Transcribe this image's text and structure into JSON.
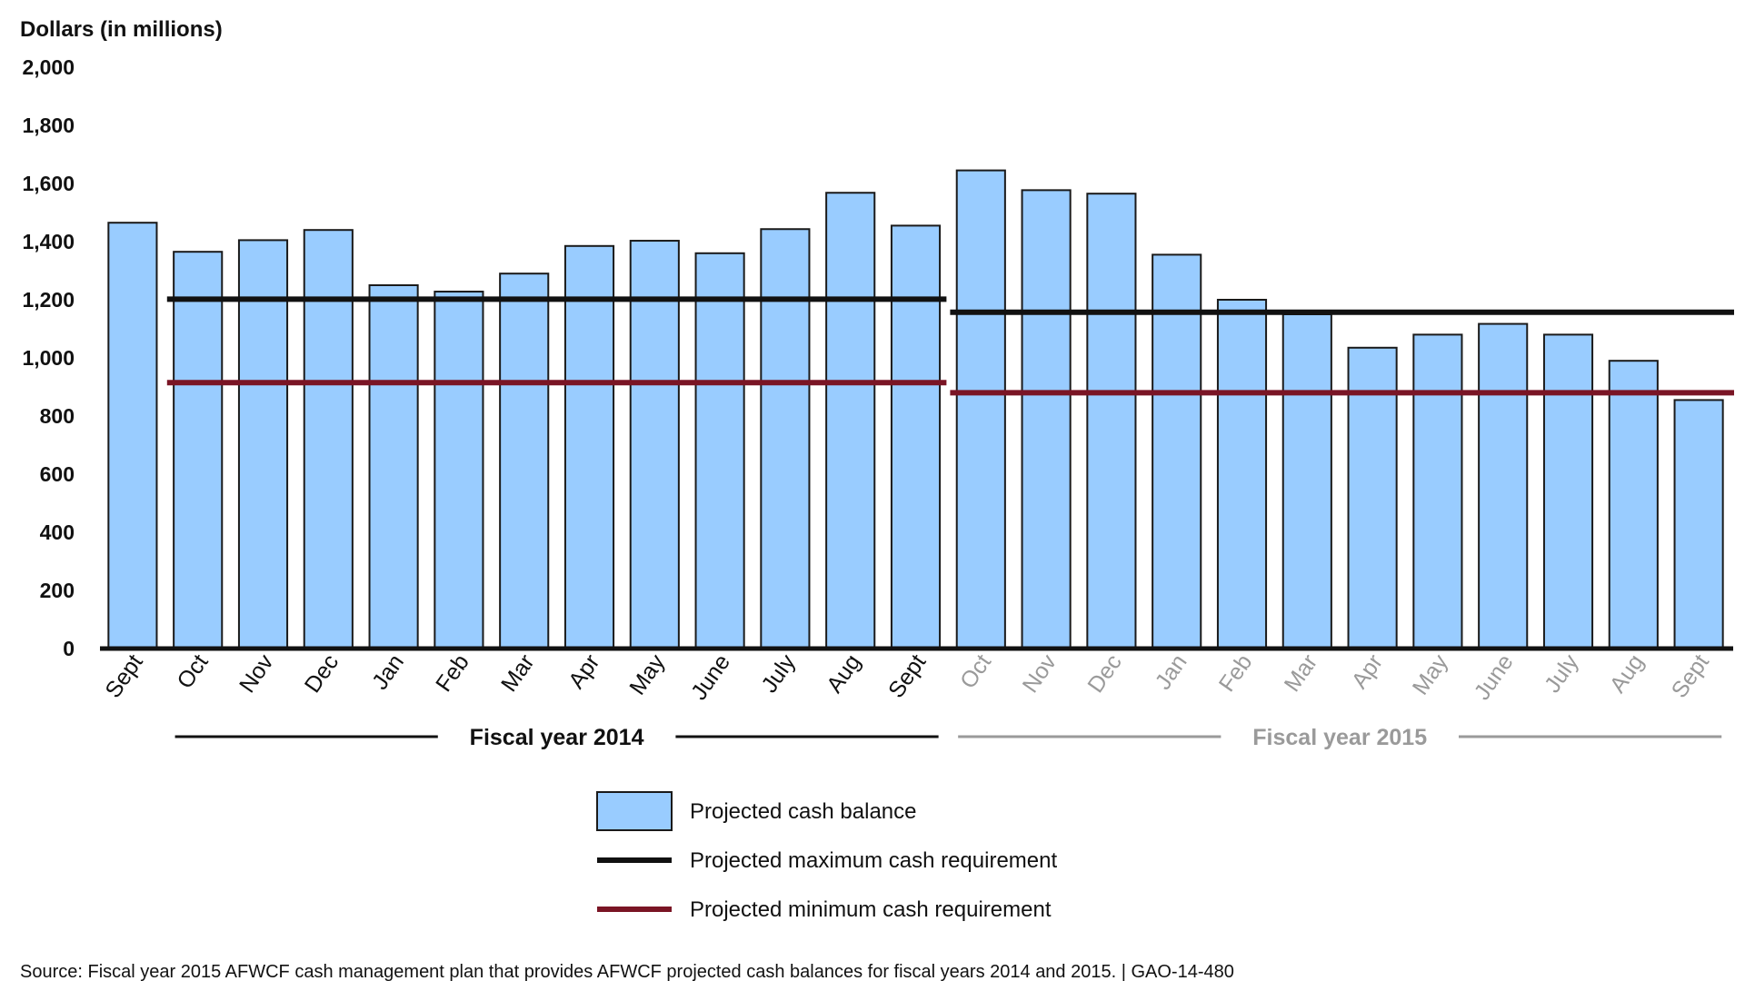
{
  "chart_data": {
    "type": "bar",
    "ylabel": "Dollars (in millions)",
    "ylim": [
      0,
      2000
    ],
    "yticks": [
      "0",
      "200",
      "400",
      "600",
      "800",
      "1,000",
      "1,200",
      "1,400",
      "1,600",
      "1,800",
      "2,000"
    ],
    "grid": false,
    "categories": [
      "Sept",
      "Oct",
      "Nov",
      "Dec",
      "Jan",
      "Feb",
      "Mar",
      "Apr",
      "May",
      "June",
      "July",
      "Aug",
      "Sept",
      "Oct",
      "Nov",
      "Dec",
      "Jan",
      "Feb",
      "Mar",
      "Apr",
      "May",
      "June",
      "July",
      "Aug",
      "Sept"
    ],
    "category_colors": [
      "#111111",
      "#111111",
      "#111111",
      "#111111",
      "#111111",
      "#111111",
      "#111111",
      "#111111",
      "#111111",
      "#111111",
      "#111111",
      "#111111",
      "#111111",
      "#9a9a9a",
      "#9a9a9a",
      "#9a9a9a",
      "#9a9a9a",
      "#9a9a9a",
      "#9a9a9a",
      "#9a9a9a",
      "#9a9a9a",
      "#9a9a9a",
      "#9a9a9a",
      "#9a9a9a",
      "#9a9a9a"
    ],
    "series": [
      {
        "name": "Projected cash balance",
        "type": "bar",
        "color": "#99ccff",
        "values": [
          1465,
          1365,
          1405,
          1440,
          1250,
          1228,
          1290,
          1385,
          1403,
          1360,
          1443,
          1568,
          1455,
          1645,
          1577,
          1565,
          1355,
          1200,
          1150,
          1035,
          1080,
          1117,
          1080,
          990,
          855
        ]
      },
      {
        "name": "Projected maximum cash requirement",
        "type": "step-line",
        "color": "#111111",
        "segments": [
          {
            "from": "Oct",
            "to": "Sept",
            "fiscal_year": "Fiscal year 2014",
            "value": 1202
          },
          {
            "from": "Oct",
            "to": "Sept",
            "fiscal_year": "Fiscal year 2015",
            "value": 1157
          }
        ]
      },
      {
        "name": "Projected minimum cash requirement",
        "type": "step-line",
        "color": "#7a1525",
        "segments": [
          {
            "from": "Oct",
            "to": "Sept",
            "fiscal_year": "Fiscal year 2014",
            "value": 915
          },
          {
            "from": "Oct",
            "to": "Sept",
            "fiscal_year": "Fiscal year 2015",
            "value": 880
          }
        ]
      }
    ],
    "groups": [
      {
        "label": "Fiscal year 2014",
        "start_index": 1,
        "end_index": 12,
        "color": "#111111"
      },
      {
        "label": "Fiscal year 2015",
        "start_index": 13,
        "end_index": 24,
        "color": "#9a9a9a"
      }
    ],
    "legend": {
      "placement": "bottom-center",
      "items": [
        {
          "label": "Projected cash balance",
          "kind": "box",
          "color": "#99ccff"
        },
        {
          "label": "Projected maximum cash requirement",
          "kind": "line",
          "color": "#111111"
        },
        {
          "label": "Projected minimum cash requirement",
          "kind": "line",
          "color": "#7a1525"
        }
      ]
    },
    "source": "Source: Fiscal year 2015 AFWCF cash management plan that provides AFWCF projected cash balances for fiscal years 2014 and 2015. | GAO-14-480"
  }
}
